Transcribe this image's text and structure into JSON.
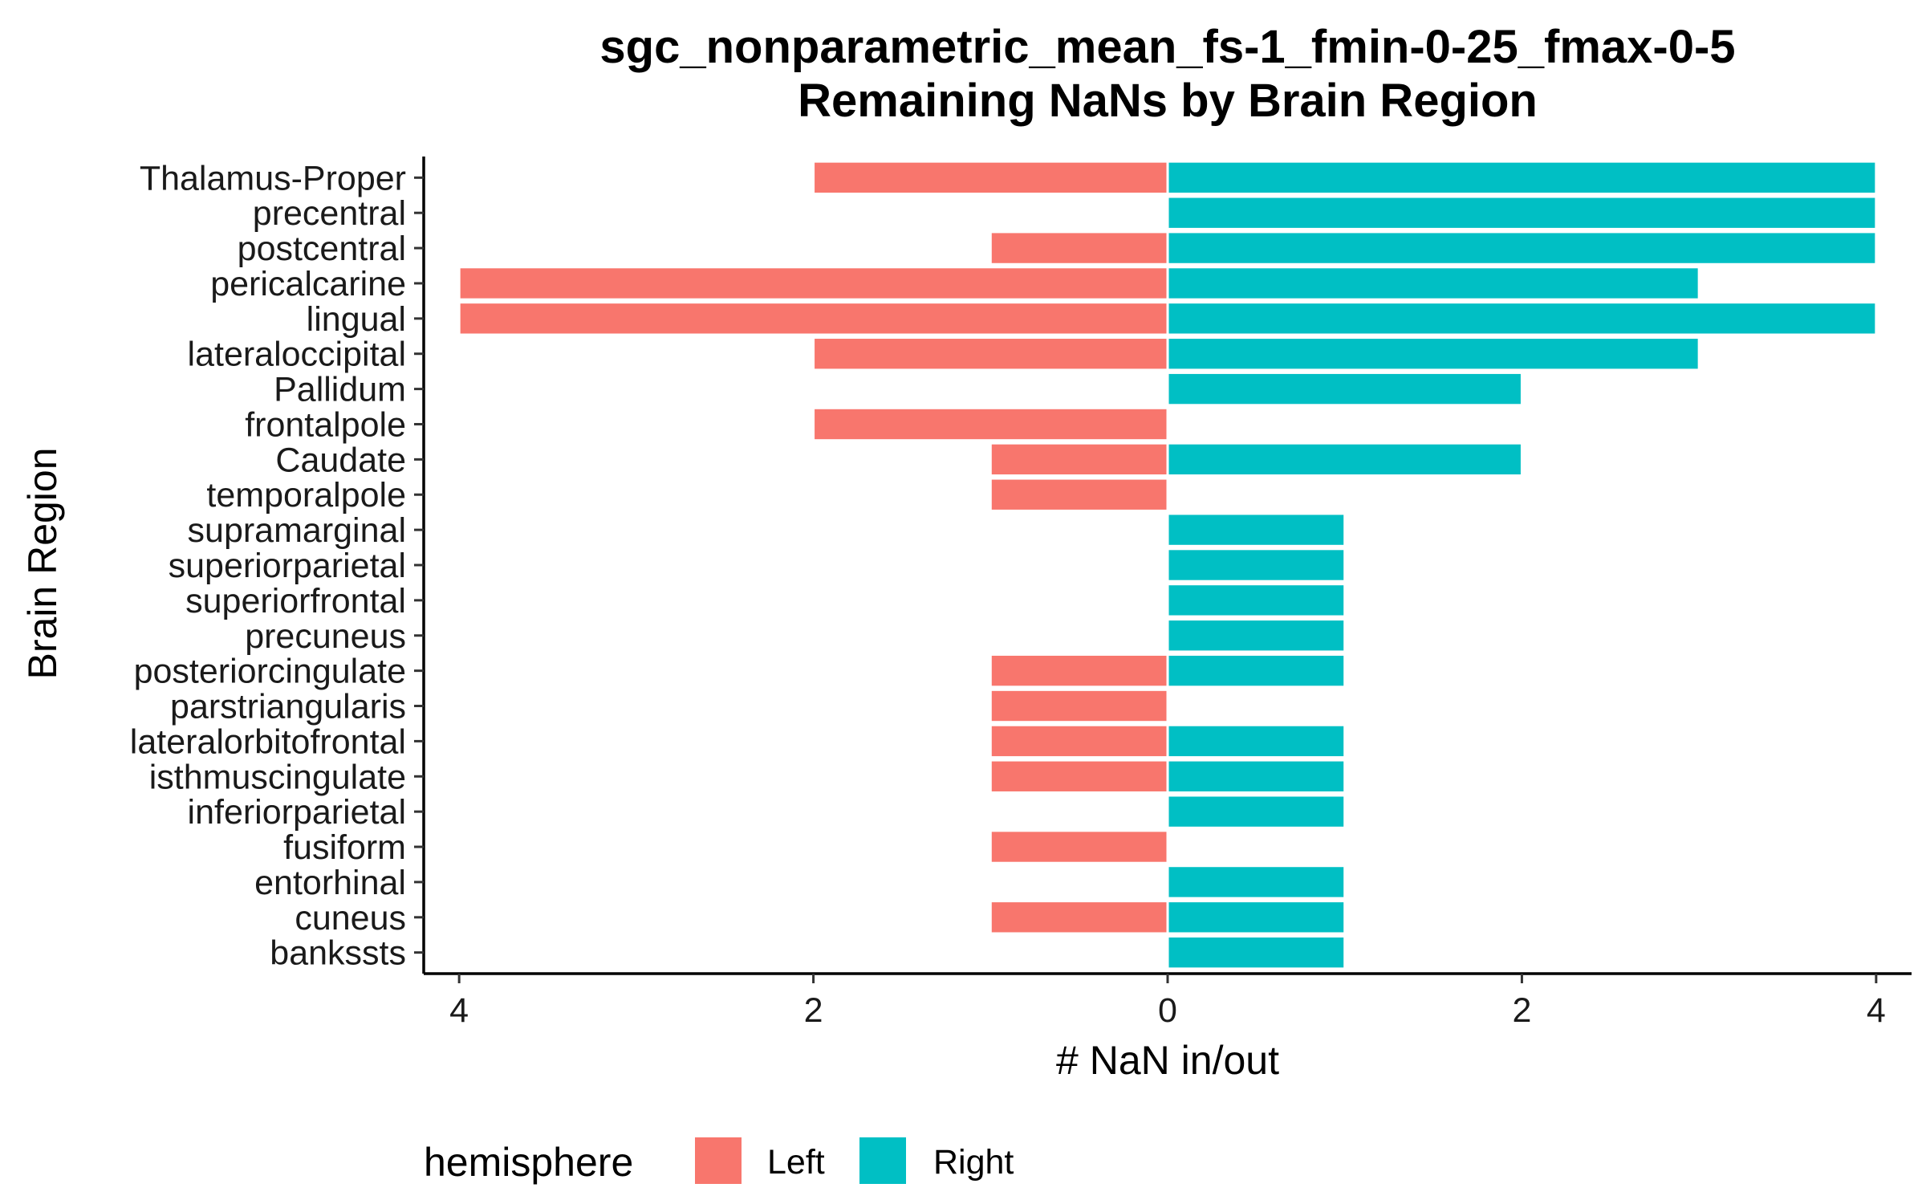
{
  "chart_data": {
    "type": "bar",
    "orientation": "horizontal-diverging",
    "title": "sgc_nonparametric_mean_fs-1_fmin-0-25_fmax-0-5",
    "subtitle": "Remaining NaNs by Brain Region",
    "xlabel": "# NaN in/out",
    "ylabel": "Brain Region",
    "xlim": [
      -4.2,
      4.2
    ],
    "x_ticks": [
      {
        "value": -4,
        "label": "4"
      },
      {
        "value": -2,
        "label": "2"
      },
      {
        "value": 0,
        "label": "0"
      },
      {
        "value": 2,
        "label": "2"
      },
      {
        "value": 4,
        "label": "4"
      }
    ],
    "grid": false,
    "legend": {
      "title": "hemisphere",
      "placement": "bottom"
    },
    "categories": [
      "Thalamus-Proper",
      "precentral",
      "postcentral",
      "pericalcarine",
      "lingual",
      "lateraloccipital",
      "Pallidum",
      "frontalpole",
      "Caudate",
      "temporalpole",
      "supramarginal",
      "superiorparietal",
      "superiorfrontal",
      "precuneus",
      "posteriorcingulate",
      "parstriangularis",
      "lateralorbitofrontal",
      "isthmuscingulate",
      "inferiorparietal",
      "fusiform",
      "entorhinal",
      "cuneus",
      "bankssts"
    ],
    "series": [
      {
        "name": "Left",
        "color": "#F8766D",
        "direction": "negative",
        "values": [
          2,
          0,
          1,
          4,
          4,
          2,
          0,
          2,
          1,
          1,
          0,
          0,
          0,
          0,
          1,
          1,
          1,
          1,
          0,
          1,
          0,
          1,
          0
        ]
      },
      {
        "name": "Right",
        "color": "#00BFC4",
        "direction": "positive",
        "values": [
          4,
          4,
          4,
          3,
          4,
          3,
          2,
          0,
          2,
          0,
          1,
          1,
          1,
          1,
          1,
          0,
          1,
          1,
          1,
          0,
          1,
          1,
          1
        ]
      }
    ]
  }
}
